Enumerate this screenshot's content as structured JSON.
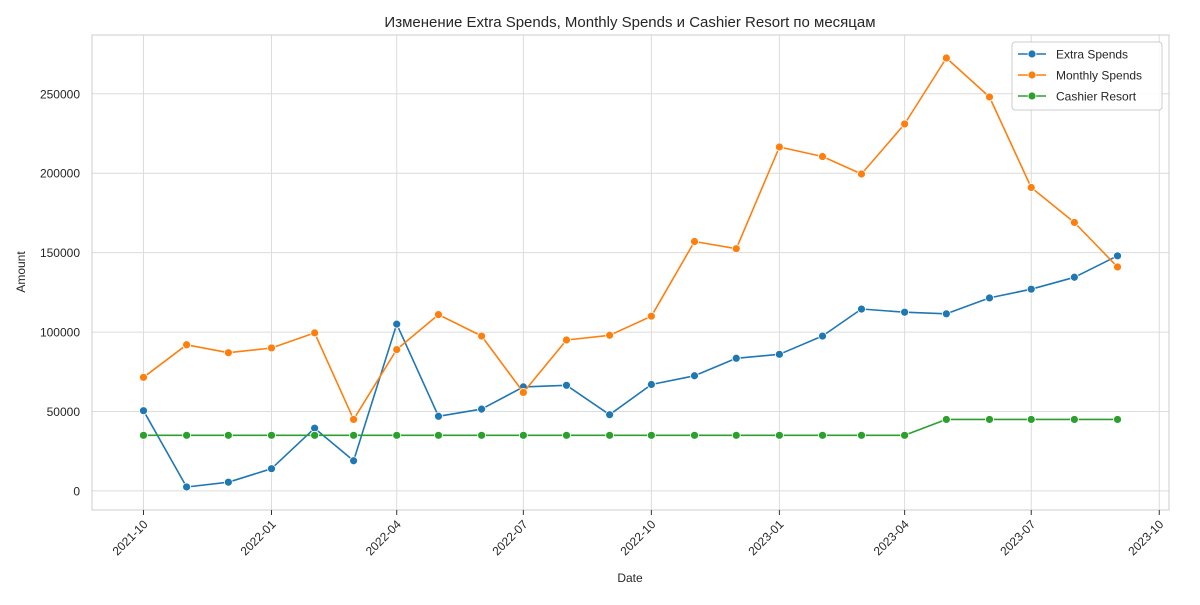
{
  "chart_data": {
    "type": "line",
    "title": "Изменение Extra Spends, Monthly Spends и Cashier Resort по месяцам",
    "xlabel": "Date",
    "ylabel": "Amount",
    "x": [
      "2021-10-01",
      "2021-11-01",
      "2021-12-01",
      "2022-01-01",
      "2022-02-01",
      "2022-03-01",
      "2022-04-01",
      "2022-05-01",
      "2022-06-01",
      "2022-07-01",
      "2022-08-01",
      "2022-09-01",
      "2022-10-01",
      "2022-11-01",
      "2022-12-01",
      "2023-01-01",
      "2023-02-01",
      "2023-03-01",
      "2023-04-01",
      "2023-05-01",
      "2023-06-01",
      "2023-07-01",
      "2023-08-01",
      "2023-09-01"
    ],
    "xlim": [
      "2021-08-25",
      "2023-10-08"
    ],
    "ylim": [
      -12000,
      287000
    ],
    "x_tick_labels": [
      "2021-10",
      "2022-01",
      "2022-04",
      "2022-07",
      "2022-10",
      "2023-01",
      "2023-04",
      "2023-07",
      "2023-10"
    ],
    "x_tick_dates": [
      "2021-10-01",
      "2022-01-01",
      "2022-04-01",
      "2022-07-01",
      "2022-10-01",
      "2023-01-01",
      "2023-04-01",
      "2023-07-01",
      "2023-10-01"
    ],
    "y_ticks": [
      0,
      50000,
      100000,
      150000,
      200000,
      250000
    ],
    "y_tick_labels": [
      "0",
      "50000",
      "100000",
      "150000",
      "200000",
      "250000"
    ],
    "grid": true,
    "legend_position": "top-right",
    "series": [
      {
        "name": "Extra Spends",
        "color": "#1f77b4",
        "values": [
          50500,
          2500,
          5500,
          14000,
          39500,
          19000,
          105000,
          47000,
          51500,
          65500,
          66500,
          48000,
          67000,
          72500,
          83500,
          86000,
          97500,
          114500,
          112500,
          111500,
          121500,
          127000,
          134500,
          148000
        ]
      },
      {
        "name": "Monthly Spends",
        "color": "#ff7f0e",
        "values": [
          71500,
          92000,
          87000,
          90000,
          99500,
          45000,
          89000,
          111000,
          97500,
          62000,
          95000,
          98000,
          110000,
          157000,
          152500,
          216500,
          210500,
          199500,
          231000,
          272500,
          248000,
          191000,
          169000,
          141000
        ]
      },
      {
        "name": "Cashier Resort",
        "color": "#2ca02c",
        "values": [
          35000,
          35000,
          35000,
          35000,
          35000,
          35000,
          35000,
          35000,
          35000,
          35000,
          35000,
          35000,
          35000,
          35000,
          35000,
          35000,
          35000,
          35000,
          35000,
          45000,
          45000,
          45000,
          45000,
          45000
        ]
      }
    ]
  }
}
